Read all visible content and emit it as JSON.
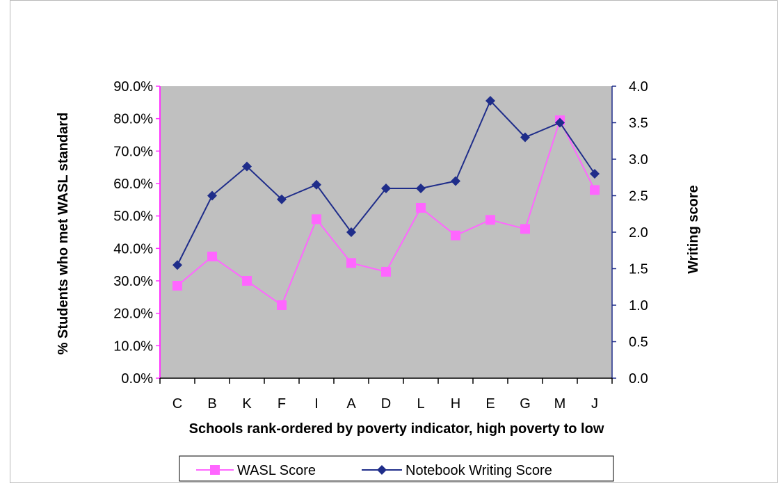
{
  "chart_data": {
    "type": "line",
    "categories": [
      "C",
      "B",
      "K",
      "F",
      "I",
      "A",
      "D",
      "L",
      "H",
      "E",
      "G",
      "M",
      "J"
    ],
    "series": [
      {
        "name": "WASL Score",
        "axis": "left",
        "color": "#ff66ff",
        "marker": "square",
        "values": [
          0.285,
          0.375,
          0.3,
          0.225,
          0.49,
          0.355,
          0.328,
          0.525,
          0.44,
          0.488,
          0.46,
          0.795,
          0.58
        ]
      },
      {
        "name": "Notebook Writing Score",
        "axis": "right",
        "color": "#1f2d8a",
        "marker": "diamond",
        "values": [
          1.55,
          2.5,
          2.9,
          2.45,
          2.65,
          2.0,
          2.6,
          2.6,
          2.7,
          3.8,
          3.3,
          3.5,
          2.8
        ]
      }
    ],
    "y_left": {
      "label": "% Students who met WASL standard",
      "range": [
        0,
        0.9
      ],
      "ticks": [
        "0.0%",
        "10.0%",
        "20.0%",
        "30.0%",
        "40.0%",
        "50.0%",
        "60.0%",
        "70.0%",
        "80.0%",
        "90.0%"
      ],
      "color": "#ff33ff"
    },
    "y_right": {
      "label": "Writing score",
      "range": [
        0,
        4.0
      ],
      "ticks": [
        "0.0",
        "0.5",
        "1.0",
        "1.5",
        "2.0",
        "2.5",
        "3.0",
        "3.5",
        "4.0"
      ],
      "color": "#1f2d8a"
    },
    "xlabel": "Schools rank-ordered by poverty indicator, high poverty to low",
    "plot_background": "#c0c0c0",
    "grid": false,
    "legend_position": "bottom"
  }
}
